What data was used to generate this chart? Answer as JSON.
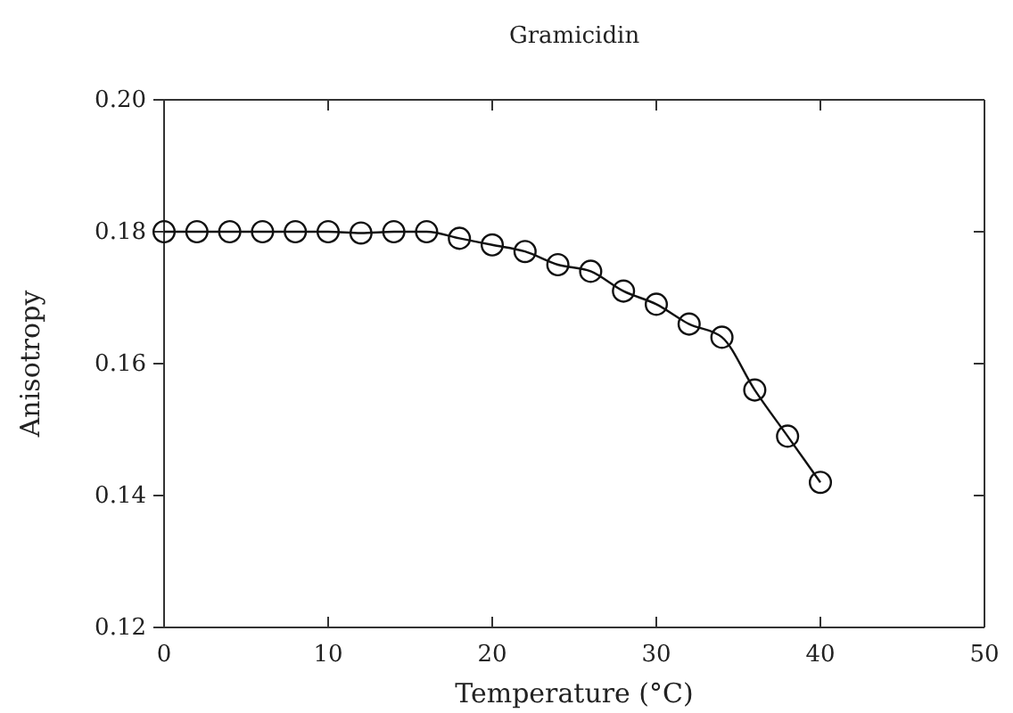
{
  "chart_data": {
    "type": "line",
    "title": "Gramicidin",
    "xlabel": "Temperature (°C)",
    "ylabel": "Anisotropy",
    "x": [
      0,
      2,
      4,
      6,
      8,
      10,
      12,
      14,
      16,
      18,
      20,
      22,
      24,
      26,
      28,
      30,
      32,
      34,
      36,
      38,
      40
    ],
    "series": [
      {
        "color": "#111111",
        "values": [
          0.18,
          0.18,
          0.18,
          0.18,
          0.18,
          0.18,
          0.1798,
          0.18,
          0.18,
          0.179,
          0.178,
          0.177,
          0.175,
          0.174,
          0.171,
          0.169,
          0.166,
          0.164,
          0.156,
          0.149,
          0.142
        ]
      }
    ],
    "xlim": [
      0,
      50
    ],
    "xticks": [
      0,
      10,
      20,
      30,
      40,
      50
    ],
    "ylim": [
      0.12,
      0.2
    ],
    "yticks": [
      {
        "value": 0.12,
        "label": "0.12"
      },
      {
        "value": 0.14,
        "label": "0.14"
      },
      {
        "value": 0.16,
        "label": "0.16"
      },
      {
        "value": 0.18,
        "label": "0.18"
      },
      {
        "value": 0.2,
        "label": "0.20"
      }
    ],
    "marker": "circle",
    "line_style": "solid",
    "grid": false
  }
}
